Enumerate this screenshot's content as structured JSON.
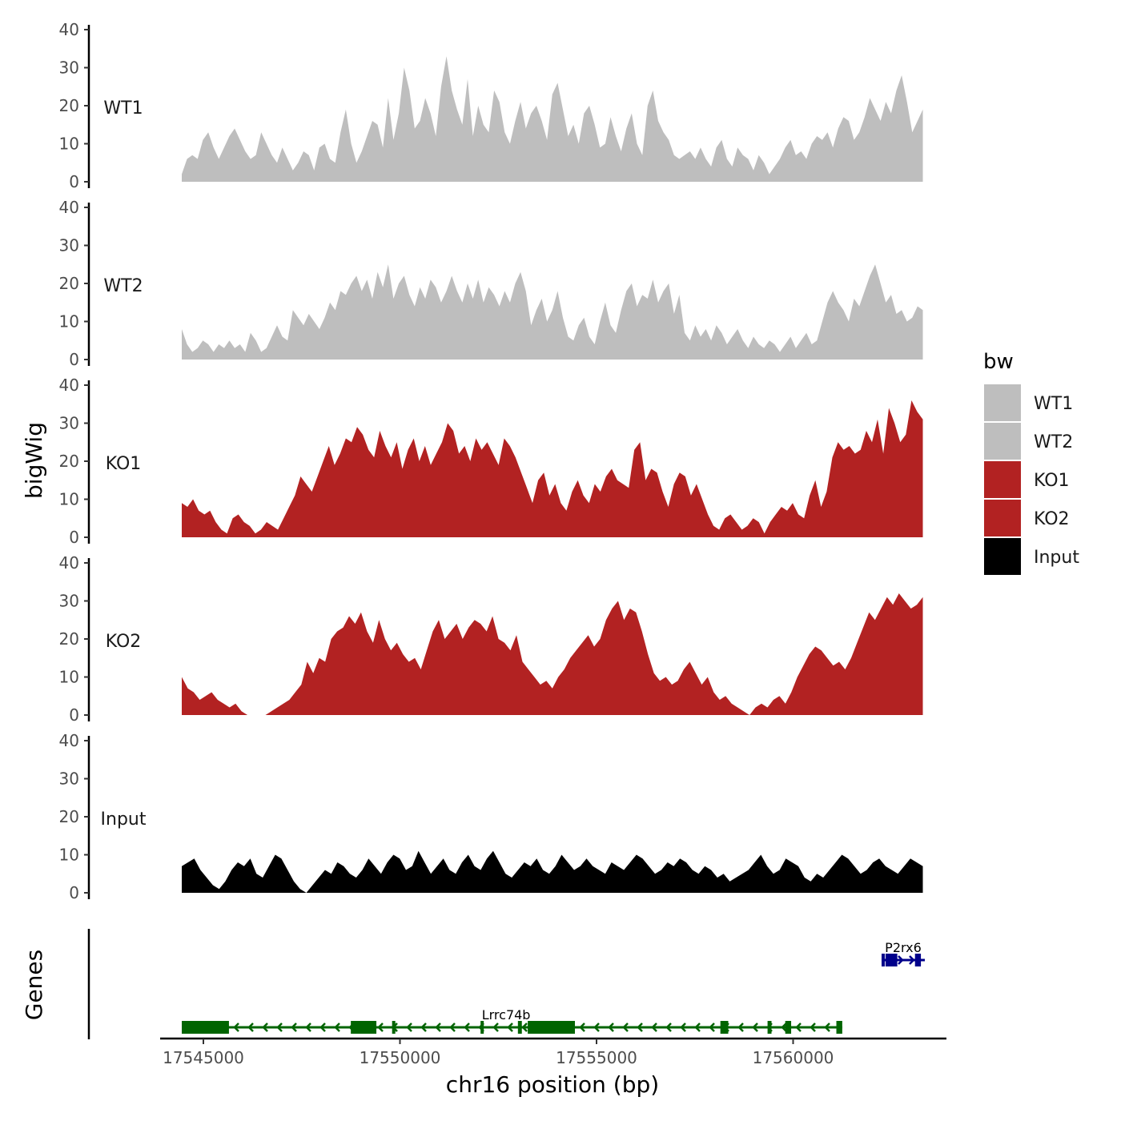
{
  "chart_data": {
    "type": "area",
    "title": "",
    "ylabel": "bigWig",
    "xlabel": "chr16 position (bp)",
    "chromosome": "chr16",
    "xlim": [
      17543900,
      17563900
    ],
    "data_range": [
      17544450,
      17563300
    ],
    "ylim": [
      0,
      40
    ],
    "yticks": [
      0,
      10,
      20,
      30,
      40
    ],
    "xticks": [
      17545000,
      17550000,
      17555000,
      17560000
    ],
    "xtick_labels": [
      "17545000",
      "17550000",
      "17555000",
      "17560000"
    ],
    "tracks": [
      {
        "name": "WT1",
        "color": "#bebebe",
        "values": [
          2,
          6,
          7,
          6,
          11,
          13,
          9,
          6,
          9,
          12,
          14,
          11,
          8,
          6,
          7,
          13,
          10,
          7,
          5,
          9,
          6,
          3,
          5,
          8,
          7,
          3,
          9,
          10,
          6,
          5,
          13,
          19,
          10,
          5,
          8,
          12,
          16,
          15,
          9,
          22,
          11,
          18,
          30,
          24,
          14,
          16,
          22,
          18,
          12,
          25,
          33,
          24,
          19,
          15,
          27,
          12,
          20,
          15,
          13,
          24,
          21,
          13,
          10,
          16,
          21,
          14,
          18,
          20,
          16,
          11,
          23,
          26,
          19,
          12,
          15,
          10,
          18,
          20,
          15,
          9,
          10,
          17,
          12,
          8,
          14,
          18,
          10,
          7,
          20,
          24,
          16,
          13,
          11,
          7,
          6,
          7,
          8,
          6,
          9,
          6,
          4,
          9,
          11,
          6,
          4,
          9,
          7,
          6,
          3,
          7,
          5,
          2,
          4,
          6,
          9,
          11,
          7,
          8,
          6,
          10,
          12,
          11,
          13,
          9,
          14,
          17,
          16,
          11,
          13,
          17,
          22,
          19,
          16,
          21,
          18,
          24,
          28,
          21,
          13,
          16,
          19
        ]
      },
      {
        "name": "WT2",
        "color": "#bebebe",
        "values": [
          8,
          4,
          2,
          3,
          5,
          4,
          2,
          4,
          3,
          5,
          3,
          4,
          2,
          7,
          5,
          2,
          3,
          6,
          9,
          6,
          5,
          13,
          11,
          9,
          12,
          10,
          8,
          11,
          15,
          13,
          18,
          17,
          20,
          22,
          18,
          21,
          16,
          23,
          19,
          25,
          16,
          20,
          22,
          17,
          14,
          19,
          16,
          21,
          19,
          15,
          18,
          22,
          18,
          15,
          20,
          16,
          21,
          15,
          19,
          17,
          14,
          18,
          15,
          20,
          23,
          18,
          9,
          13,
          16,
          10,
          13,
          18,
          11,
          6,
          5,
          9,
          11,
          6,
          4,
          10,
          15,
          9,
          7,
          13,
          18,
          20,
          14,
          17,
          16,
          21,
          15,
          18,
          20,
          12,
          17,
          7,
          5,
          9,
          6,
          8,
          5,
          9,
          7,
          4,
          6,
          8,
          5,
          3,
          6,
          4,
          3,
          5,
          4,
          2,
          4,
          6,
          3,
          5,
          7,
          4,
          5,
          10,
          15,
          18,
          15,
          13,
          10,
          16,
          14,
          18,
          22,
          25,
          20,
          15,
          17,
          12,
          13,
          10,
          11,
          14,
          13
        ]
      },
      {
        "name": "KO1",
        "color": "#b22222",
        "values": [
          9,
          8,
          10,
          7,
          6,
          7,
          4,
          2,
          1,
          5,
          6,
          4,
          3,
          1,
          2,
          4,
          3,
          2,
          5,
          8,
          11,
          16,
          14,
          12,
          16,
          20,
          24,
          19,
          22,
          26,
          25,
          29,
          27,
          23,
          21,
          28,
          24,
          21,
          25,
          18,
          23,
          26,
          20,
          24,
          19,
          22,
          25,
          30,
          28,
          22,
          24,
          20,
          26,
          23,
          25,
          22,
          19,
          26,
          24,
          21,
          17,
          13,
          9,
          15,
          17,
          11,
          14,
          9,
          7,
          12,
          15,
          11,
          9,
          14,
          12,
          16,
          18,
          15,
          14,
          13,
          23,
          25,
          15,
          18,
          17,
          12,
          8,
          14,
          17,
          16,
          11,
          14,
          10,
          6,
          3,
          2,
          5,
          6,
          4,
          2,
          3,
          5,
          4,
          1,
          4,
          6,
          8,
          7,
          9,
          6,
          5,
          11,
          15,
          8,
          12,
          21,
          25,
          23,
          24,
          22,
          23,
          28,
          25,
          31,
          22,
          34,
          30,
          25,
          27,
          36,
          33,
          31
        ]
      },
      {
        "name": "KO2",
        "color": "#b22222",
        "values": [
          10,
          7,
          6,
          4,
          5,
          6,
          4,
          3,
          2,
          3,
          1,
          0,
          0,
          0,
          0,
          1,
          2,
          3,
          4,
          6,
          8,
          14,
          11,
          15,
          14,
          20,
          22,
          23,
          26,
          24,
          27,
          22,
          19,
          25,
          20,
          17,
          19,
          16,
          14,
          15,
          12,
          17,
          22,
          25,
          20,
          22,
          24,
          20,
          23,
          25,
          24,
          22,
          26,
          20,
          19,
          17,
          21,
          14,
          12,
          10,
          8,
          9,
          7,
          10,
          12,
          15,
          17,
          19,
          21,
          18,
          20,
          25,
          28,
          30,
          25,
          28,
          27,
          22,
          16,
          11,
          9,
          10,
          8,
          9,
          12,
          14,
          11,
          8,
          10,
          6,
          4,
          5,
          3,
          2,
          1,
          0,
          2,
          3,
          2,
          4,
          5,
          3,
          6,
          10,
          13,
          16,
          18,
          17,
          15,
          13,
          14,
          12,
          15,
          19,
          23,
          27,
          25,
          28,
          31,
          29,
          32,
          30,
          28,
          29,
          31
        ]
      },
      {
        "name": "Input",
        "color": "#000000",
        "values": [
          7,
          8,
          9,
          6,
          4,
          2,
          1,
          3,
          6,
          8,
          7,
          9,
          5,
          4,
          7,
          10,
          9,
          6,
          3,
          1,
          0,
          2,
          4,
          6,
          5,
          8,
          7,
          5,
          4,
          6,
          9,
          7,
          5,
          8,
          10,
          9,
          6,
          7,
          11,
          8,
          5,
          7,
          9,
          6,
          5,
          8,
          10,
          7,
          6,
          9,
          11,
          8,
          5,
          4,
          6,
          8,
          7,
          9,
          6,
          5,
          7,
          10,
          8,
          6,
          7,
          9,
          7,
          6,
          5,
          8,
          7,
          6,
          8,
          10,
          9,
          7,
          5,
          6,
          8,
          7,
          9,
          8,
          6,
          5,
          7,
          6,
          4,
          5,
          3,
          4,
          5,
          6,
          8,
          10,
          7,
          5,
          6,
          9,
          8,
          7,
          4,
          3,
          5,
          4,
          6,
          8,
          10,
          9,
          7,
          5,
          6,
          8,
          9,
          7,
          6,
          5,
          7,
          9,
          8,
          7
        ]
      }
    ],
    "genes_track_label": "Genes",
    "genes": [
      {
        "name": "Lrrc74b",
        "strand": "-",
        "color": "#006400",
        "start": 17544450,
        "end": 17561250,
        "exons": [
          [
            17544450,
            17545650
          ],
          [
            17548750,
            17549400
          ],
          [
            17549800,
            17549850
          ],
          [
            17552050,
            17552100
          ],
          [
            17553000,
            17553100
          ],
          [
            17553250,
            17554450
          ],
          [
            17558150,
            17558350
          ],
          [
            17559350,
            17559450
          ],
          [
            17559800,
            17559950
          ],
          [
            17561100,
            17561250
          ]
        ]
      },
      {
        "name": "P2rx6",
        "strand": "+",
        "color": "#00008b",
        "start": 17562250,
        "end": 17563350,
        "exons": [
          [
            17562250,
            17562300
          ],
          [
            17562350,
            17562650
          ],
          [
            17563100,
            17563250
          ]
        ]
      }
    ],
    "legend": {
      "title": "bw",
      "position": "right",
      "entries": [
        {
          "label": "WT1",
          "color": "#bebebe"
        },
        {
          "label": "WT2",
          "color": "#bebebe"
        },
        {
          "label": "KO1",
          "color": "#b22222"
        },
        {
          "label": "KO2",
          "color": "#b22222"
        },
        {
          "label": "Input",
          "color": "#000000"
        }
      ]
    }
  }
}
